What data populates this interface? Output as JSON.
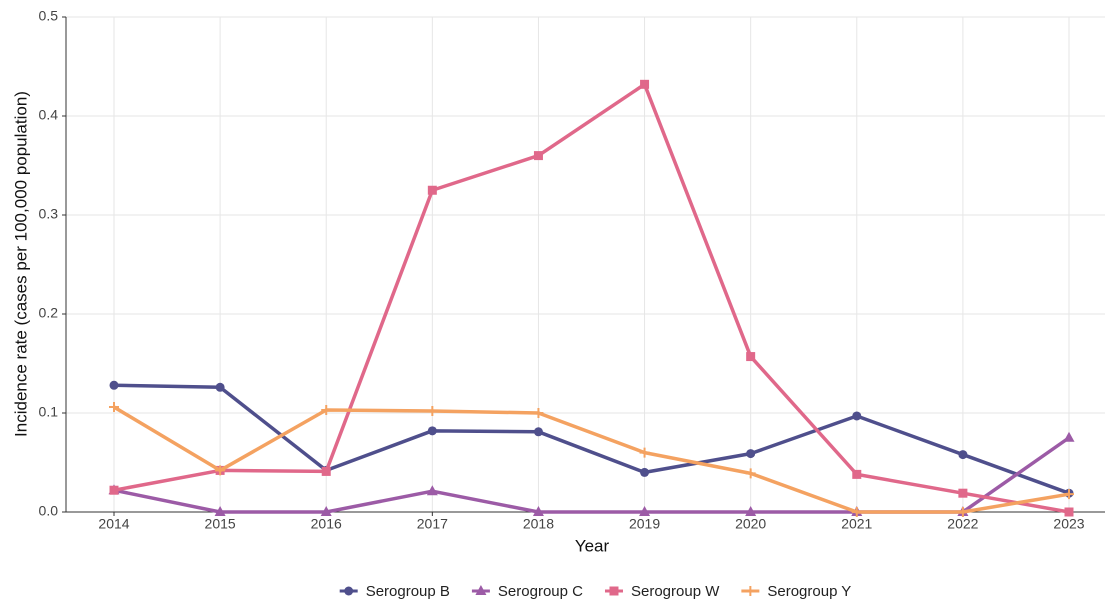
{
  "chart_data": {
    "type": "line",
    "x_label": "Year",
    "y_label": "Incidence rate (cases per 100,000 population)",
    "categories": [
      "2014",
      "2015",
      "2016",
      "2017",
      "2018",
      "2019",
      "2020",
      "2021",
      "2022",
      "2023"
    ],
    "series": [
      {
        "name": "Serogroup B",
        "color": "#4f4f8c",
        "marker": "circle",
        "values": [
          0.128,
          0.126,
          0.042,
          0.082,
          0.081,
          0.04,
          0.059,
          0.097,
          0.058,
          0.019
        ]
      },
      {
        "name": "Serogroup C",
        "color": "#9c5ba6",
        "marker": "triangle",
        "values": [
          0.022,
          0,
          0,
          0.021,
          0,
          0,
          0,
          0,
          0,
          0.075
        ]
      },
      {
        "name": "Serogroup W",
        "color": "#e0688a",
        "marker": "square",
        "values": [
          0.022,
          0.042,
          0.041,
          0.325,
          0.36,
          0.432,
          0.157,
          0.038,
          0.019,
          0
        ]
      },
      {
        "name": "Serogroup Y",
        "color": "#f4a261",
        "marker": "plus",
        "values": [
          0.106,
          0.042,
          0.103,
          0.102,
          0.1,
          0.06,
          0.039,
          0,
          0,
          0.018
        ]
      }
    ],
    "ylim": [
      0,
      0.5
    ],
    "yticks": [
      {
        "value": 0,
        "label": "0.0"
      },
      0.1,
      0.2,
      0.3,
      0.4,
      0.5
    ],
    "grid": true,
    "legend": "bottom"
  }
}
